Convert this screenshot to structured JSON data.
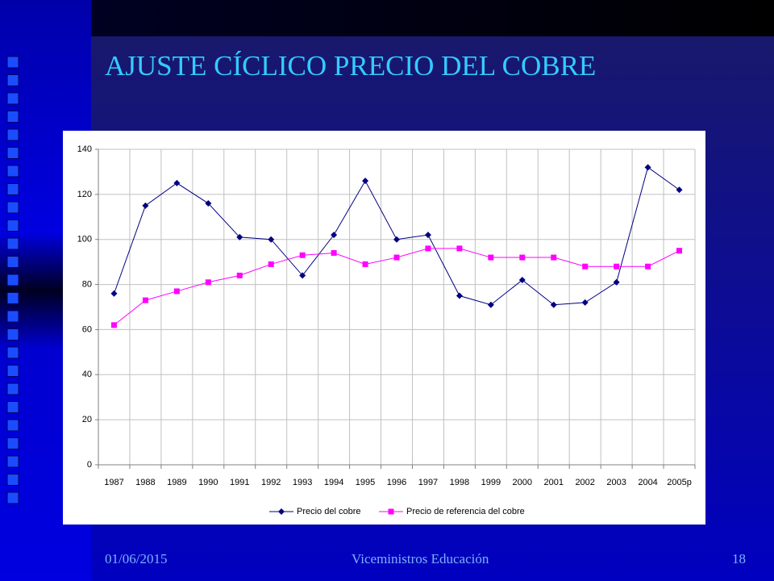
{
  "slide": {
    "title": "AJUSTE CÍCLICO PRECIO DEL COBRE",
    "date": "01/06/2015",
    "footer": "Viceministros Educación",
    "page": "18"
  },
  "chart_data": {
    "type": "line",
    "categories": [
      "1987",
      "1988",
      "1989",
      "1990",
      "1991",
      "1992",
      "1993",
      "1994",
      "1995",
      "1996",
      "1997",
      "1998",
      "1999",
      "2000",
      "2001",
      "2002",
      "2003",
      "2004",
      "2005p"
    ],
    "series": [
      {
        "name": "Precio del cobre",
        "color": "#000080",
        "marker": "diamond",
        "values": [
          76,
          115,
          125,
          116,
          101,
          100,
          84,
          102,
          126,
          100,
          102,
          75,
          71,
          82,
          71,
          72,
          81,
          132,
          122
        ]
      },
      {
        "name": "Precio de referencia del cobre",
        "color": "#ff00ff",
        "marker": "square",
        "values": [
          62,
          73,
          77,
          81,
          84,
          89,
          93,
          94,
          89,
          92,
          96,
          96,
          92,
          92,
          92,
          88,
          88,
          88,
          95
        ]
      }
    ],
    "ylim": [
      0,
      140
    ],
    "yticks": [
      0,
      20,
      40,
      60,
      80,
      100,
      120,
      140
    ],
    "grid": true,
    "legend": "bottom"
  }
}
